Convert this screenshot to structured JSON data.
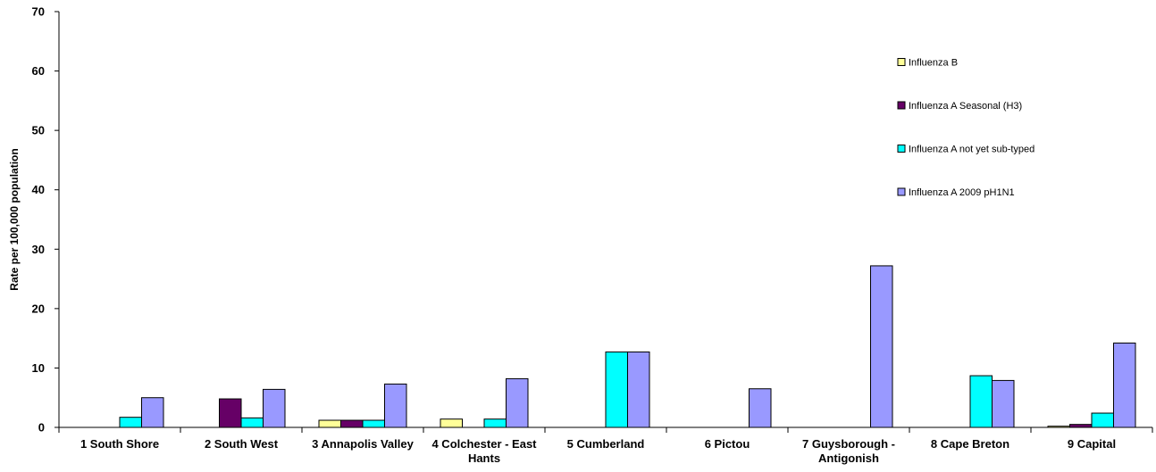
{
  "chart_data": {
    "type": "bar",
    "title": "",
    "xlabel": "",
    "ylabel": "Rate per 100,000 population",
    "ylim": [
      0,
      70
    ],
    "yticks": [
      0,
      10,
      20,
      30,
      40,
      50,
      60,
      70
    ],
    "grid": false,
    "legend_position": "right",
    "categories": [
      [
        "1 South Shore"
      ],
      [
        "2 South West"
      ],
      [
        "3 Annapolis Valley"
      ],
      [
        "4 Colchester - East",
        "Hants"
      ],
      [
        "5 Cumberland"
      ],
      [
        "6 Pictou"
      ],
      [
        "7 Guysborough -",
        "Antigonish"
      ],
      [
        "8 Cape Breton"
      ],
      [
        "9 Capital"
      ]
    ],
    "series": [
      {
        "name": "Influenza B",
        "color": "#ffff99",
        "values": [
          0,
          0,
          1.2,
          1.4,
          0,
          0,
          0,
          0,
          0.2
        ]
      },
      {
        "name": "Influenza A Seasonal (H3)",
        "color": "#660066",
        "values": [
          0,
          4.8,
          1.2,
          0,
          0,
          0,
          0,
          0,
          0.5
        ]
      },
      {
        "name": "Influenza A not yet sub-typed",
        "color": "#00ffff",
        "values": [
          1.7,
          1.6,
          1.2,
          1.4,
          12.7,
          0,
          0,
          8.7,
          2.4
        ]
      },
      {
        "name": "Influenza A 2009 pH1N1",
        "color": "#9999ff",
        "values": [
          5.0,
          6.4,
          7.3,
          8.2,
          12.7,
          6.5,
          27.2,
          7.9,
          14.2
        ]
      }
    ]
  }
}
